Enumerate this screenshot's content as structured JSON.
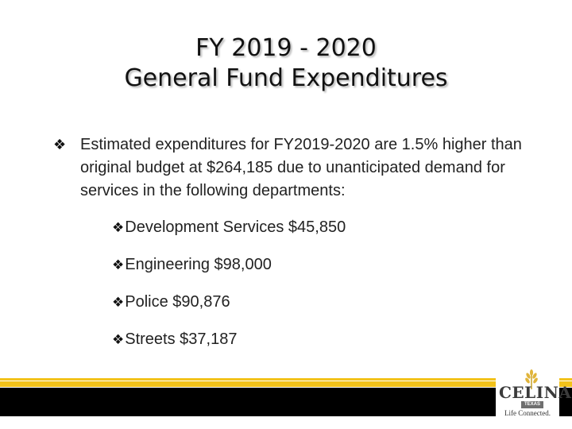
{
  "slide": {
    "title_line1": "FY 2019 - 2020",
    "title_line2": "General Fund Expenditures",
    "bullet_glyph": "❖",
    "main_bullet": "Estimated expenditures for FY2019-2020 are 1.5% higher than original budget at $264,185 due to unanticipated demand for services in the following departments:",
    "departments": [
      "Development Services $45,850",
      "Engineering $98,000",
      "Police $90,876",
      "Streets $37,187"
    ]
  },
  "logo": {
    "name": "CELINA",
    "state": "TEXAS",
    "tagline": "Life Connected."
  },
  "colors": {
    "accent_gold": "#f2c21b",
    "footer_black": "#000000"
  }
}
